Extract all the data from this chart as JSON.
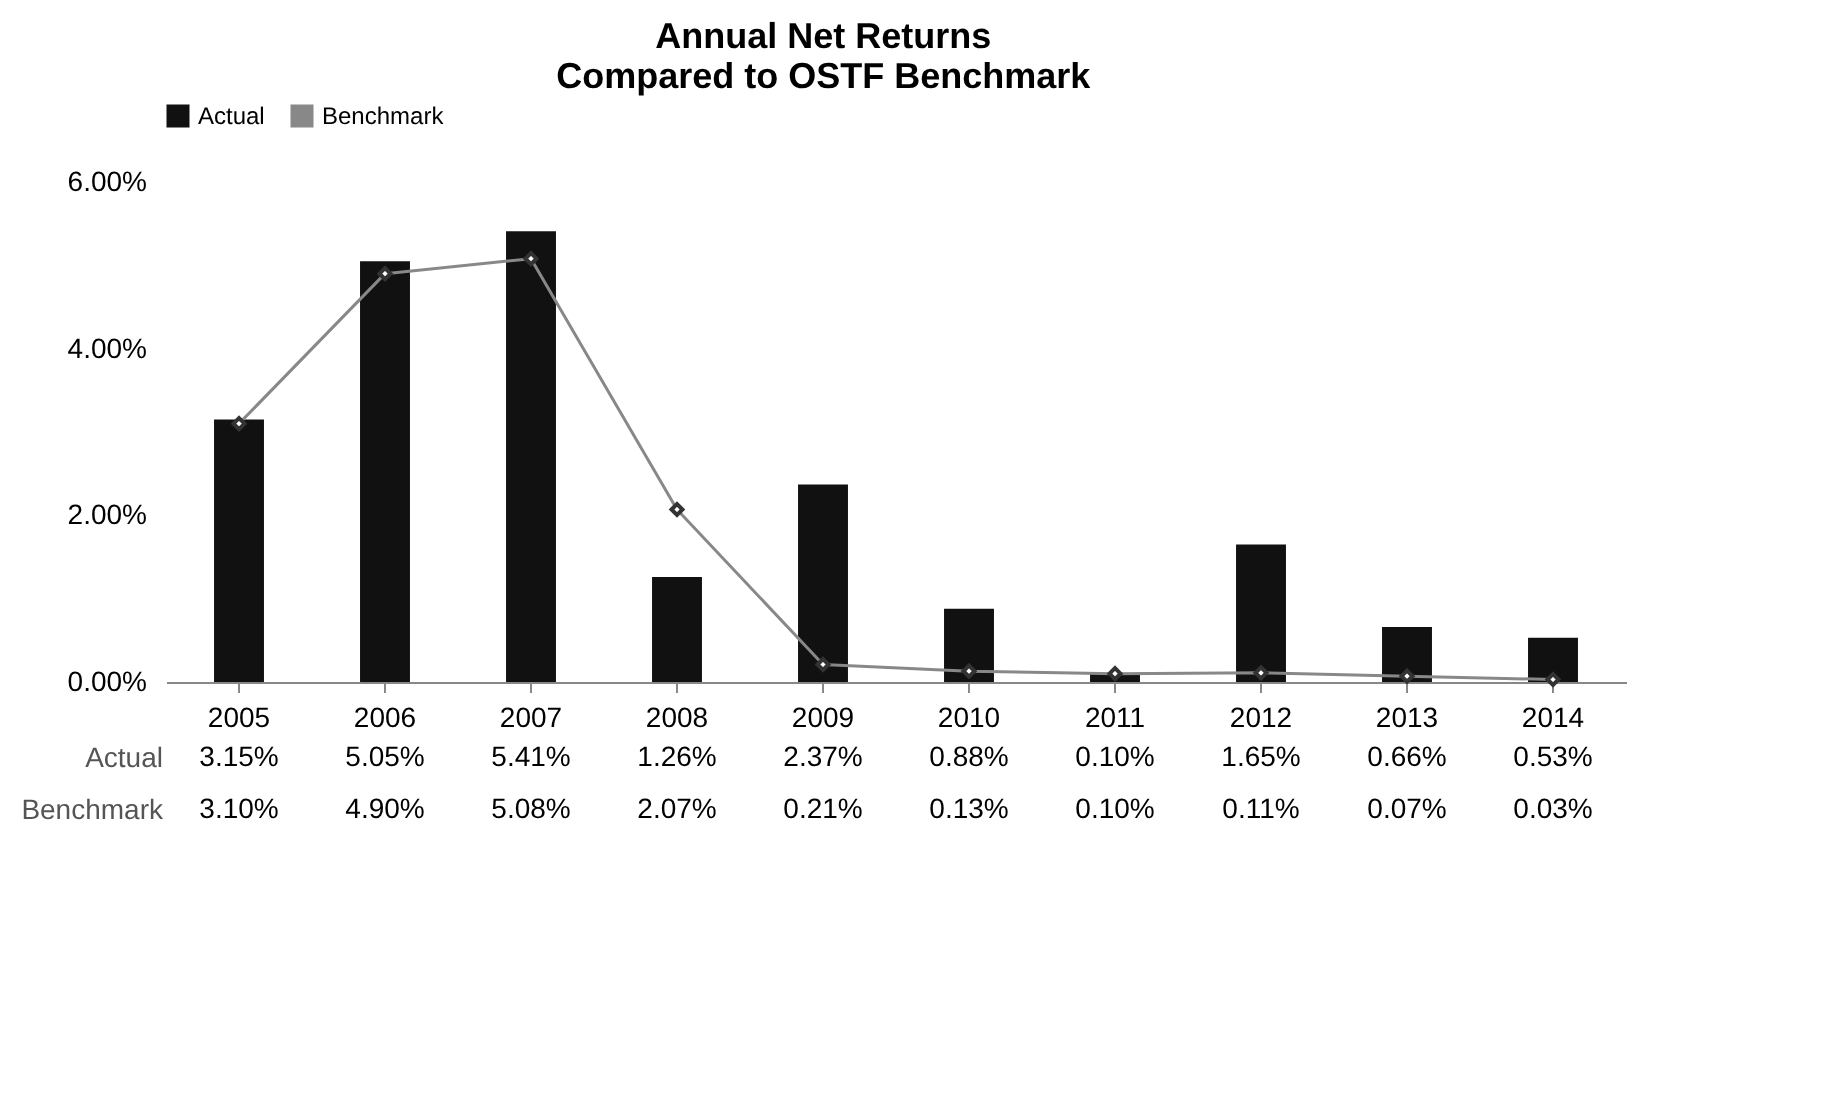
{
  "chart_data": {
    "type": "bar",
    "title": "Annual Net Returns\nCompared to OSTF Benchmark",
    "categories": [
      "2005",
      "2006",
      "2007",
      "2008",
      "2009",
      "2010",
      "2011",
      "2012",
      "2013",
      "2014"
    ],
    "series": [
      {
        "name": "Actual",
        "color": "#111111",
        "values": [
          3.15,
          5.05,
          5.41,
          1.26,
          2.37,
          0.88,
          0.1,
          1.65,
          0.66,
          0.53
        ],
        "value_labels": [
          "3.15%",
          "5.05%",
          "5.41%",
          "1.26%",
          "2.37%",
          "0.88%",
          "0.10%",
          "1.65%",
          "0.66%",
          "0.53%"
        ]
      },
      {
        "name": "Benchmark",
        "type": "line",
        "color": "#888888",
        "marker": "diamond",
        "values": [
          3.1,
          4.9,
          5.08,
          2.07,
          0.21,
          0.13,
          0.1,
          0.11,
          0.07,
          0.03
        ],
        "value_labels": [
          "3.10%",
          "4.90%",
          "5.08%",
          "2.07%",
          "0.21%",
          "0.13%",
          "0.10%",
          "0.11%",
          "0.07%",
          "0.03%"
        ]
      }
    ],
    "ylim": [
      0,
      6
    ],
    "yticks": [
      {
        "value": 0,
        "label": "0.00%"
      },
      {
        "value": 2,
        "label": "2.00%"
      },
      {
        "value": 4,
        "label": "4.00%"
      },
      {
        "value": 6,
        "label": "6.00%"
      }
    ],
    "grid": false,
    "legend": "top"
  }
}
